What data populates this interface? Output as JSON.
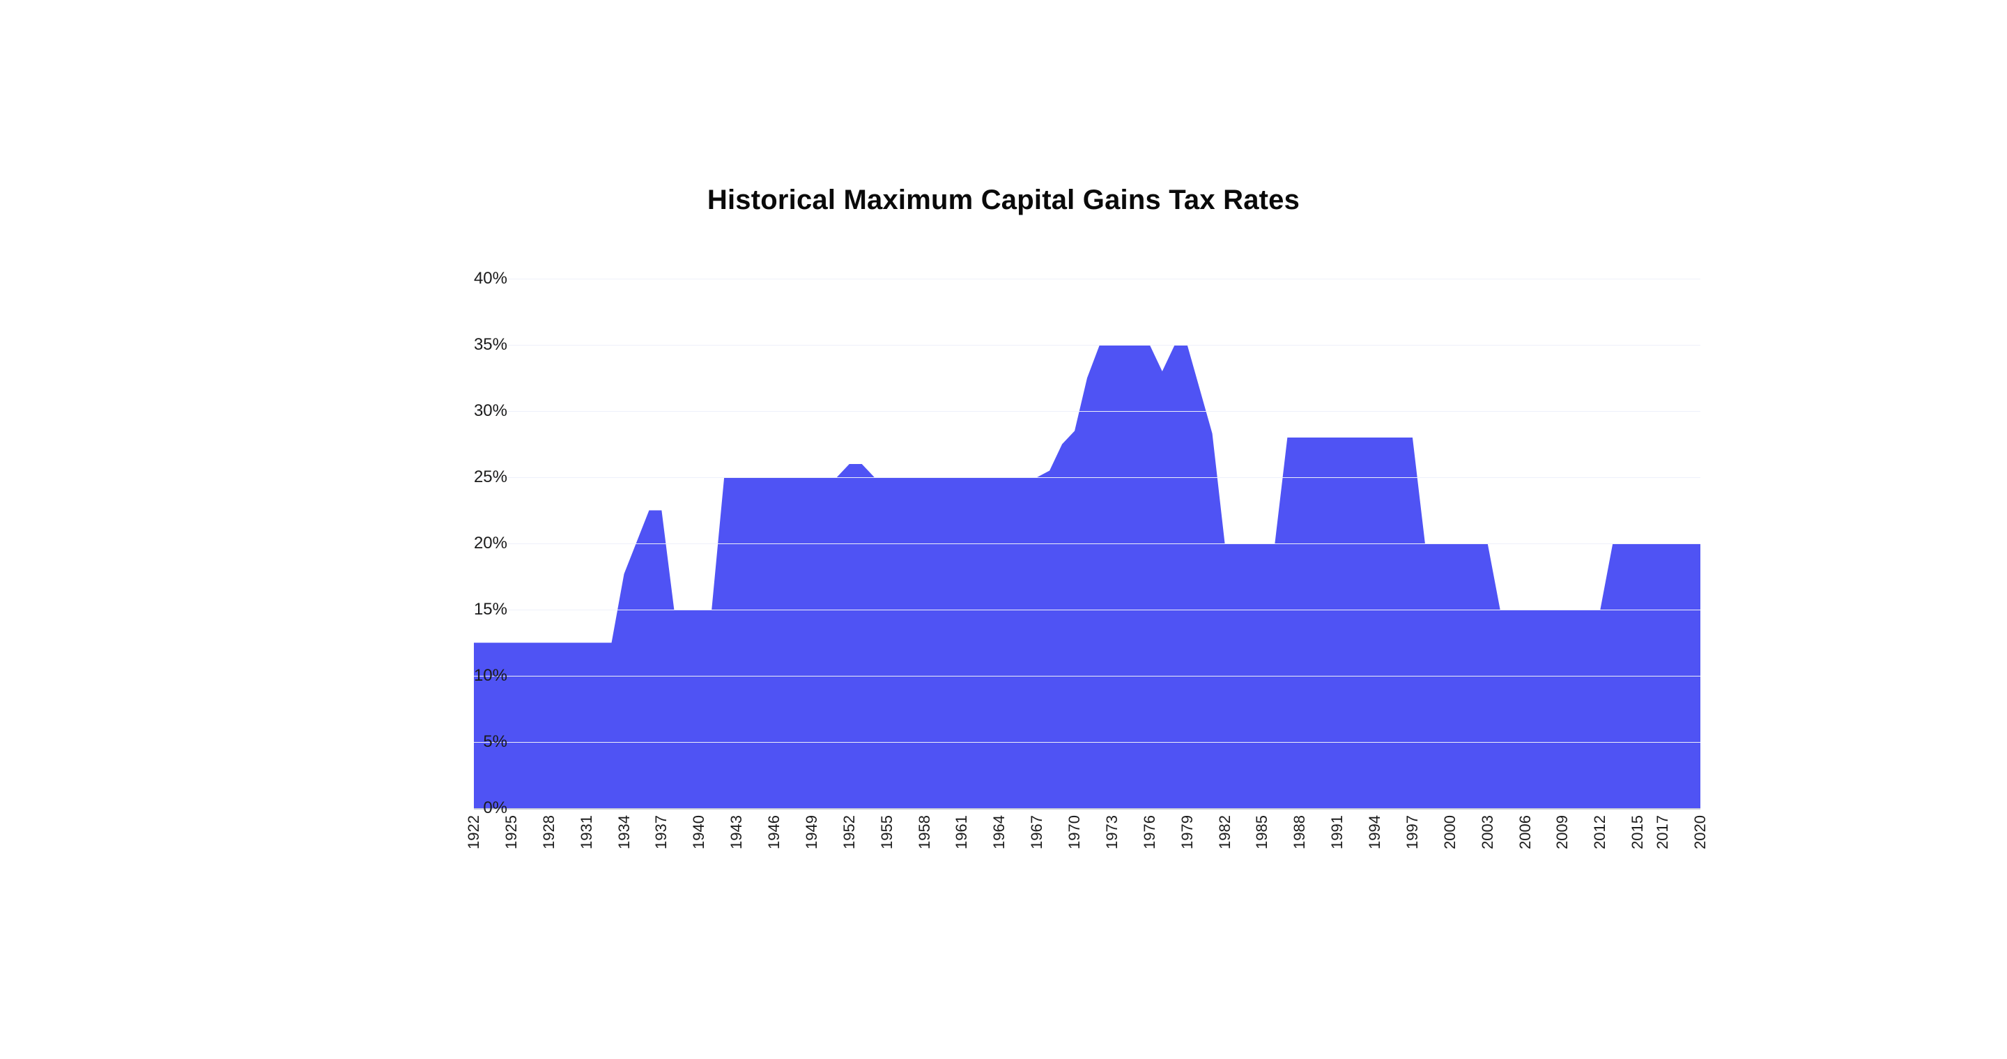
{
  "chart": {
    "type": "area",
    "title": "Historical Maximum Capital Gains Tax Rates",
    "title_fontsize": 40,
    "title_color": "#0a0a0a",
    "background_color": "#ffffff",
    "fill_color": "#4f53f4",
    "fill_opacity": 1.0,
    "grid_color": "#eef0fa",
    "axis_color": "#c9cdd8",
    "label_color": "#1b1b1b",
    "ylabel_fontsize": 24,
    "xlabel_fontsize": 22,
    "ylim": [
      0,
      40
    ],
    "yticks": [
      0,
      5,
      10,
      15,
      20,
      25,
      30,
      35,
      40
    ],
    "ytick_labels": [
      "0%",
      "5%",
      "10%",
      "15%",
      "20%",
      "25%",
      "30%",
      "35%",
      "40%"
    ],
    "xticks": [
      1922,
      1925,
      1928,
      1931,
      1934,
      1937,
      1940,
      1943,
      1946,
      1949,
      1952,
      1955,
      1958,
      1961,
      1964,
      1967,
      1970,
      1973,
      1976,
      1979,
      1982,
      1985,
      1988,
      1991,
      1994,
      1997,
      2000,
      2003,
      2006,
      2009,
      2012,
      2015,
      2017,
      2020
    ],
    "xlim": [
      1922,
      2020
    ],
    "x_tick_rotation": -90,
    "values": [
      [
        1922,
        12.5
      ],
      [
        1933,
        12.5
      ],
      [
        1934,
        17.7
      ],
      [
        1936,
        22.5
      ],
      [
        1937,
        22.5
      ],
      [
        1938,
        15
      ],
      [
        1941,
        15
      ],
      [
        1942,
        25
      ],
      [
        1951,
        25
      ],
      [
        1952,
        26
      ],
      [
        1953,
        26
      ],
      [
        1954,
        25
      ],
      [
        1967,
        25
      ],
      [
        1968,
        25.5
      ],
      [
        1969,
        27.5
      ],
      [
        1970,
        28.5
      ],
      [
        1971,
        32.5
      ],
      [
        1972,
        35
      ],
      [
        1976,
        35
      ],
      [
        1977,
        33
      ],
      [
        1978,
        35
      ],
      [
        1979,
        35
      ],
      [
        1981,
        28.3
      ],
      [
        1982,
        20
      ],
      [
        1986,
        20
      ],
      [
        1987,
        28
      ],
      [
        1997,
        28
      ],
      [
        1998,
        20
      ],
      [
        2003,
        20
      ],
      [
        2004,
        15
      ],
      [
        2012,
        15
      ],
      [
        2013,
        20
      ],
      [
        2020,
        20
      ]
    ]
  }
}
